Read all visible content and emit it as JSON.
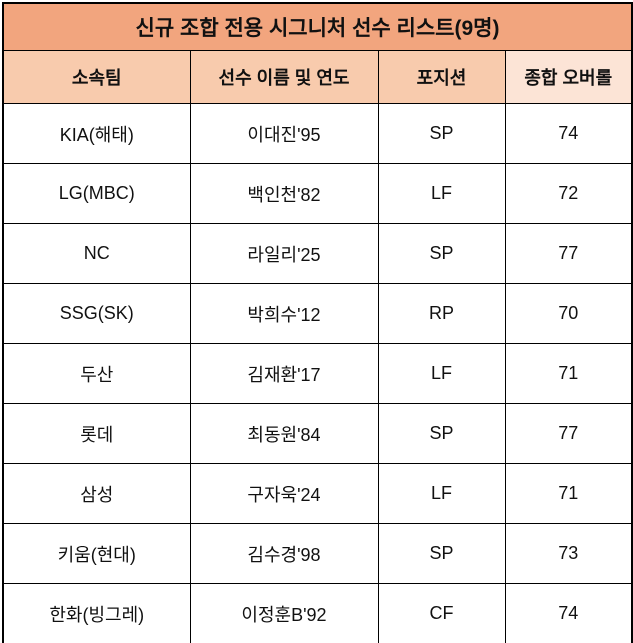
{
  "colors": {
    "title_bg": "#F2A57E",
    "header_bg": "#F8CBAD",
    "header_highlight_bg": "#FCE4D6",
    "body_bg": "#FFFFFF",
    "border": "#000000",
    "text": "#111111"
  },
  "table": {
    "title": "신규 조합 전용 시그니처 선수 리스트(9명)",
    "columns": [
      "소속팀",
      "선수 이름 및 연도",
      "포지션",
      "종합 오버롤"
    ],
    "rows": [
      [
        "KIA(해태)",
        "이대진'95",
        "SP",
        "74"
      ],
      [
        "LG(MBC)",
        "백인천'82",
        "LF",
        "72"
      ],
      [
        "NC",
        "라일리'25",
        "SP",
        "77"
      ],
      [
        "SSG(SK)",
        "박희수'12",
        "RP",
        "70"
      ],
      [
        "두산",
        "김재환'17",
        "LF",
        "71"
      ],
      [
        "롯데",
        "최동원'84",
        "SP",
        "77"
      ],
      [
        "삼성",
        "구자욱'24",
        "LF",
        "71"
      ],
      [
        "키움(현대)",
        "김수경'98",
        "SP",
        "73"
      ],
      [
        "한화(빙그레)",
        "이정훈B'92",
        "CF",
        "74"
      ]
    ]
  },
  "chart_data": {
    "type": "table",
    "title": "신규 조합 전용 시그니처 선수 리스트(9명)",
    "columns": [
      "소속팀",
      "선수 이름 및 연도",
      "포지션",
      "종합 오버롤"
    ],
    "rows": [
      {
        "team": "KIA(해태)",
        "player": "이대진'95",
        "position": "SP",
        "overall": 74
      },
      {
        "team": "LG(MBC)",
        "player": "백인천'82",
        "position": "LF",
        "overall": 72
      },
      {
        "team": "NC",
        "player": "라일리'25",
        "position": "SP",
        "overall": 77
      },
      {
        "team": "SSG(SK)",
        "player": "박희수'12",
        "position": "RP",
        "overall": 70
      },
      {
        "team": "두산",
        "player": "김재환'17",
        "position": "LF",
        "overall": 71
      },
      {
        "team": "롯데",
        "player": "최동원'84",
        "position": "SP",
        "overall": 77
      },
      {
        "team": "삼성",
        "player": "구자욱'24",
        "position": "LF",
        "overall": 71
      },
      {
        "team": "키움(현대)",
        "player": "김수경'98",
        "position": "SP",
        "overall": 73
      },
      {
        "team": "한화(빙그레)",
        "player": "이정훈B'92",
        "position": "CF",
        "overall": 74
      }
    ],
    "row_count": 9
  }
}
